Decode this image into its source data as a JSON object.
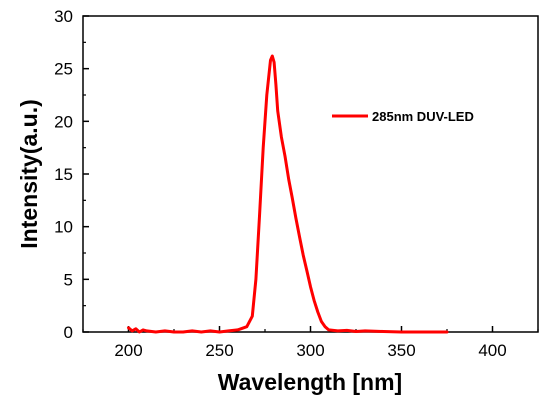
{
  "chart_data": {
    "type": "line",
    "title": "",
    "xlabel": "Wavelength [nm]",
    "ylabel": "Intensity(a.u.)",
    "xlim": [
      175,
      425
    ],
    "ylim": [
      0,
      30
    ],
    "xticks": [
      200,
      250,
      300,
      350,
      400
    ],
    "yticks": [
      0,
      5,
      10,
      15,
      20,
      25,
      30
    ],
    "grid": false,
    "legend_position": "top-right",
    "series": [
      {
        "name": "285nm DUV-LED",
        "color": "#ff0000",
        "x": [
          200,
          202,
          204,
          206,
          208,
          210,
          215,
          220,
          225,
          230,
          235,
          240,
          245,
          250,
          255,
          260,
          265,
          268,
          270,
          272,
          274,
          276,
          278,
          279,
          280,
          281,
          282,
          284,
          286,
          288,
          290,
          292,
          294,
          296,
          298,
          300,
          302,
          304,
          306,
          308,
          310,
          315,
          320,
          325,
          330,
          340,
          350,
          360,
          370,
          375
        ],
        "values": [
          0.4,
          0.1,
          0.3,
          0.0,
          0.2,
          0.1,
          0.0,
          0.1,
          0.0,
          0.0,
          0.1,
          0.0,
          0.1,
          0.0,
          0.1,
          0.2,
          0.5,
          1.5,
          5.0,
          11.0,
          17.5,
          22.5,
          25.8,
          26.2,
          25.6,
          23.5,
          21.0,
          18.5,
          16.7,
          14.5,
          12.7,
          10.8,
          9.0,
          7.3,
          5.8,
          4.3,
          3.0,
          1.9,
          1.0,
          0.5,
          0.2,
          0.1,
          0.15,
          0.05,
          0.1,
          0.05,
          0.0,
          0.0,
          0.0,
          0.0
        ]
      }
    ]
  }
}
